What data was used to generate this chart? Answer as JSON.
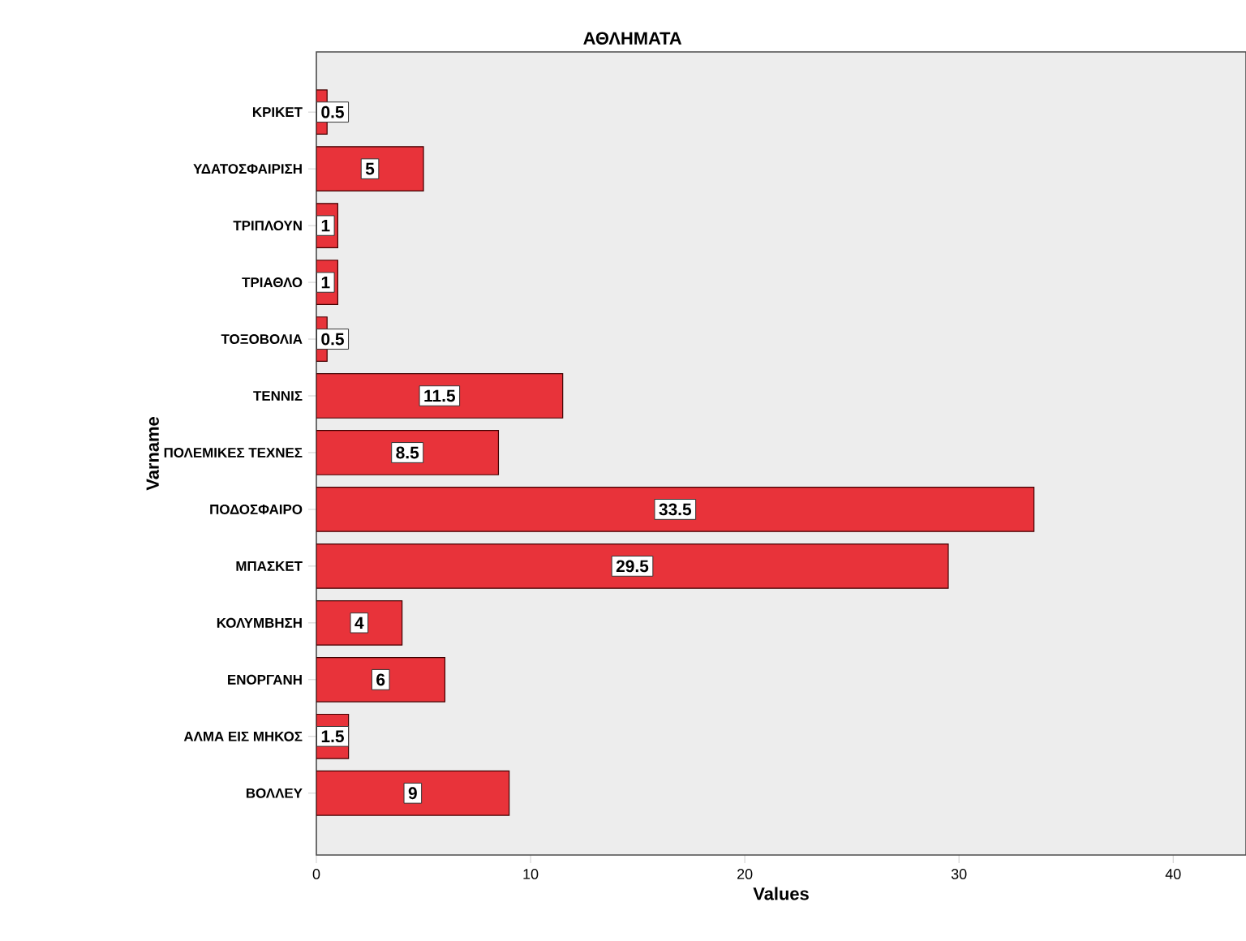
{
  "chart_data": {
    "type": "bar",
    "orientation": "horizontal",
    "title": "ΑΘΛΗΜΑΤΑ",
    "xlabel": "Values",
    "ylabel": "Varname",
    "categories": [
      "ΚΡΙΚΕΤ",
      "ΥΔΑΤΟΣΦΑΙΡΙΣΗ",
      "ΤΡΙΠΛΟΥΝ",
      "ΤΡΙΑΘΛΟ",
      "ΤΟΞΟΒΟΛΙΑ",
      "ΤΕΝΝΙΣ",
      "ΠΟΛΕΜΙΚΕΣ ΤΕΧΝΕΣ",
      "ΠΟΔΟΣΦΑΙΡΟ",
      "ΜΠΑΣΚΕΤ",
      "ΚΟΛΥΜΒΗΣΗ",
      "ΕΝΟΡΓΑΝΗ",
      "ΑΛΜΑ ΕΙΣ ΜΗΚΟΣ",
      "ΒΟΛΛΕΥ"
    ],
    "values": [
      0.5,
      5,
      1,
      1,
      0.5,
      11.5,
      8.5,
      33.5,
      29.5,
      4,
      6,
      1.5,
      9
    ],
    "color": "#e8333a",
    "data_labels": true,
    "xlim": [
      0,
      43.4
    ],
    "xticks": [
      0,
      10,
      20,
      30,
      40
    ],
    "grid": false
  }
}
